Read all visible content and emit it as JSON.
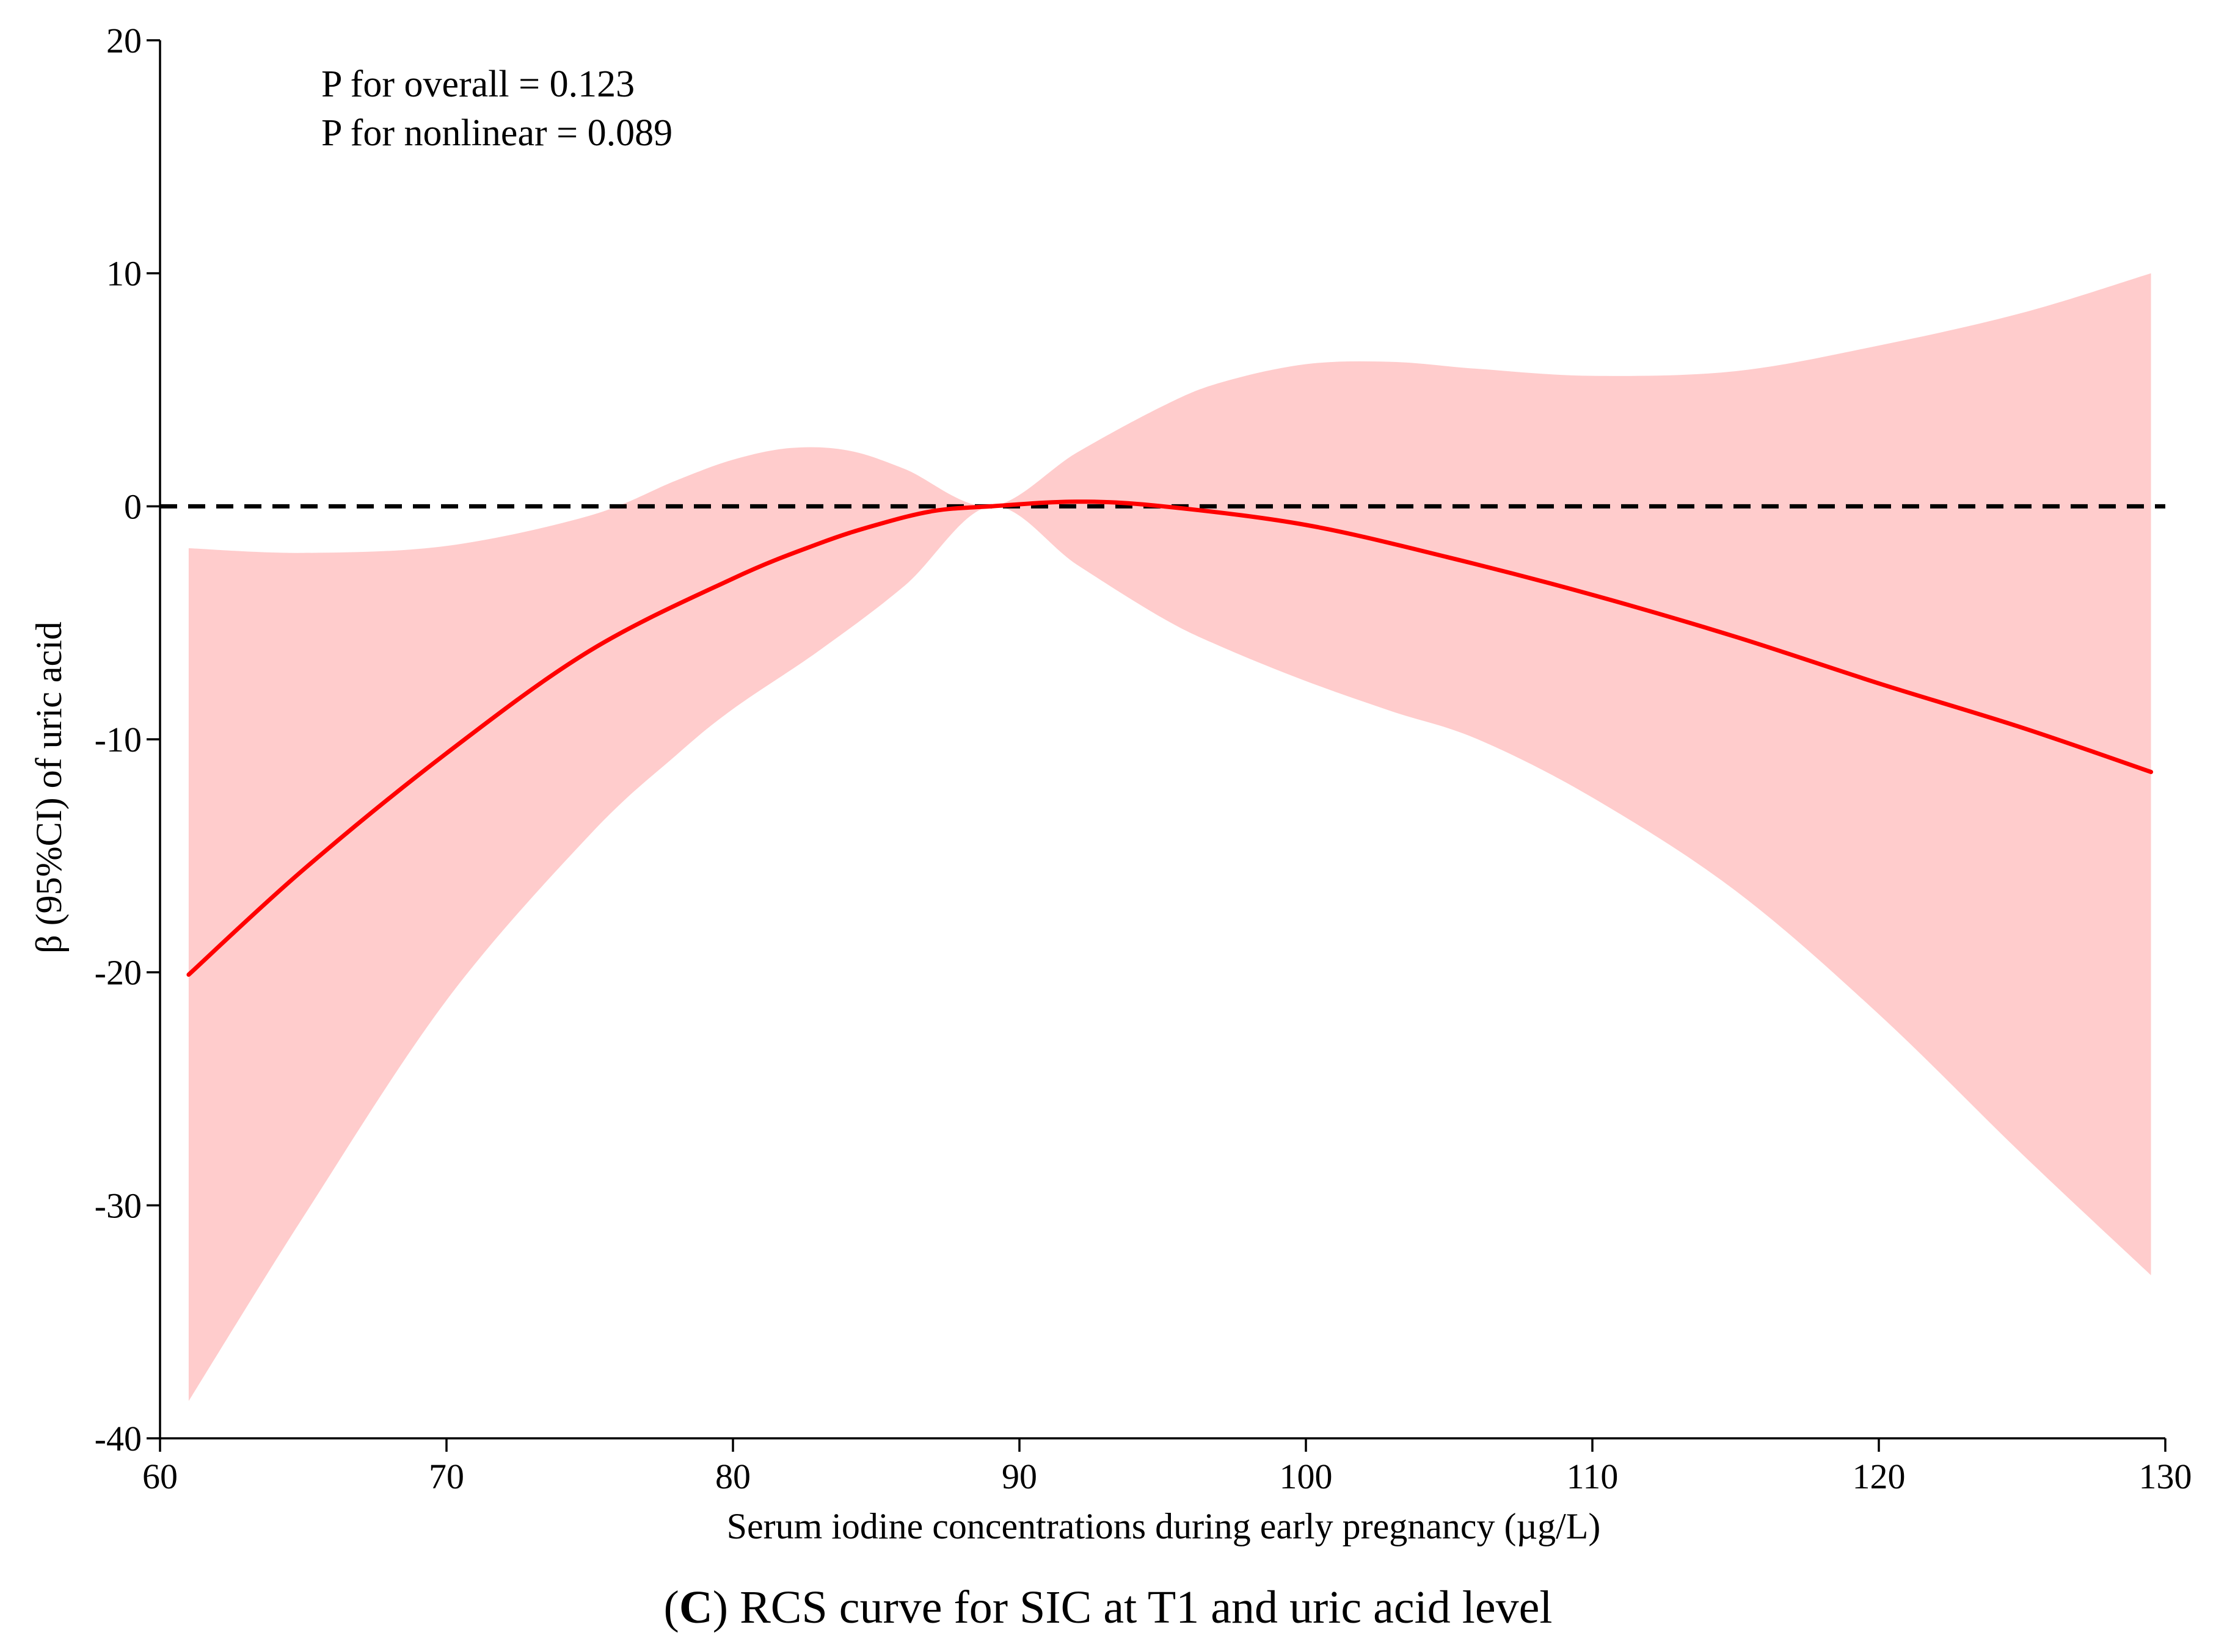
{
  "chart_data": {
    "type": "line",
    "title": "",
    "xlabel": "Serum iodine concentrations during early pregnancy (µg/L)",
    "ylabel": "β (95%CI) of uric acid",
    "xlim": [
      60,
      130
    ],
    "ylim": [
      -40,
      20
    ],
    "xticks": [
      60,
      70,
      80,
      90,
      100,
      110,
      120,
      130
    ],
    "yticks": [
      -40,
      -30,
      -20,
      -10,
      0,
      10,
      20
    ],
    "reference_line": {
      "y": 0,
      "style": "dashed",
      "color": "#000000"
    },
    "annotations": [
      "P for overall = 0.123",
      "P for nonlinear = 0.089"
    ],
    "series": [
      {
        "name": "β estimate",
        "color": "#ff0000",
        "x": [
          61,
          65,
          70,
          75,
          80,
          83,
          85,
          87,
          89,
          92,
          95,
          100,
          105,
          110,
          115,
          120,
          125,
          129.5
        ],
        "y": [
          -20.1,
          -15.6,
          -10.6,
          -6.2,
          -3.1,
          -1.6,
          -0.8,
          -0.2,
          0.0,
          0.2,
          0.0,
          -0.8,
          -2.2,
          -3.8,
          -5.6,
          -7.6,
          -9.5,
          -11.4
        ]
      },
      {
        "name": "95% CI upper",
        "role": "ci_upper",
        "x": [
          61,
          65,
          70,
          75,
          78,
          80,
          82,
          84,
          86,
          89,
          92,
          95,
          97,
          100,
          103,
          106,
          110,
          115,
          120,
          125,
          129.5
        ],
        "y": [
          -1.8,
          -2.0,
          -1.7,
          -0.4,
          1.1,
          2.0,
          2.5,
          2.4,
          1.6,
          0.0,
          2.3,
          4.3,
          5.3,
          6.1,
          6.2,
          5.9,
          5.6,
          5.8,
          6.9,
          8.3,
          10.0
        ]
      },
      {
        "name": "95% CI lower",
        "role": "ci_lower",
        "x": [
          61,
          65,
          70,
          75,
          78,
          80,
          83,
          86,
          89,
          92,
          95,
          97,
          100,
          103,
          106,
          110,
          115,
          120,
          125,
          129.5
        ],
        "y": [
          -38.4,
          -30.5,
          -21.2,
          -14.1,
          -10.7,
          -8.7,
          -6.2,
          -3.4,
          0.0,
          -2.5,
          -4.8,
          -6.0,
          -7.5,
          -8.8,
          -10.0,
          -12.5,
          -16.5,
          -21.8,
          -27.8,
          -33.0
        ]
      }
    ],
    "ci_fill_color": "#ffcccc"
  },
  "caption": {
    "label": "C",
    "text": "RCS curve for SIC at T1 and uric acid level"
  }
}
